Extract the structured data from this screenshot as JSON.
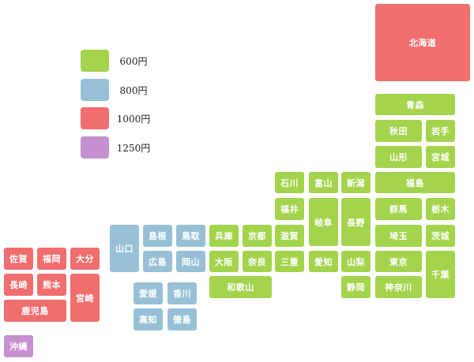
{
  "colors": {
    "600": "#a3d44c",
    "800": "#97c0d6",
    "1000": "#f06e6e",
    "1250": "#c690d0"
  },
  "legend": [
    {
      "price": "600円"
    },
    {
      "price": "800円"
    },
    {
      "price": "1000円"
    },
    {
      "price": "1250円"
    }
  ],
  "prefectures": {
    "hokkaido": "北海道",
    "aomori": "青森",
    "akita": "秋田",
    "iwate": "岩手",
    "yamagata": "山形",
    "miyagi": "宮城",
    "fukushima": "福島",
    "niigata": "新潟",
    "gunma": "群馬",
    "tochigi": "栃木",
    "ibaraki": "茨城",
    "saitama": "埼玉",
    "chiba": "千葉",
    "tokyo": "東京",
    "kanagawa": "神奈川",
    "yamanashi": "山梨",
    "nagano": "長野",
    "shizuoka": "静岡",
    "toyama": "富山",
    "ishikawa": "石川",
    "fukui": "福井",
    "gifu": "岐阜",
    "aichi": "愛知",
    "shiga": "滋賀",
    "mie": "三重",
    "kyoto": "京都",
    "nara": "奈良",
    "osaka": "大阪",
    "hyogo": "兵庫",
    "wakayama": "和歌山",
    "tottori": "鳥取",
    "shimane": "島根",
    "okayama": "岡山",
    "hiroshima": "広島",
    "yamaguchi": "山口",
    "ehime": "愛媛",
    "kagawa": "香川",
    "kochi": "高知",
    "tokushima": "徳島",
    "fukuoka": "福岡",
    "saga": "佐賀",
    "oita": "大分",
    "nagasaki": "長崎",
    "kumamoto": "熊本",
    "miyazaki": "宮崎",
    "kagoshima": "鹿児島",
    "okinawa": "沖縄"
  }
}
